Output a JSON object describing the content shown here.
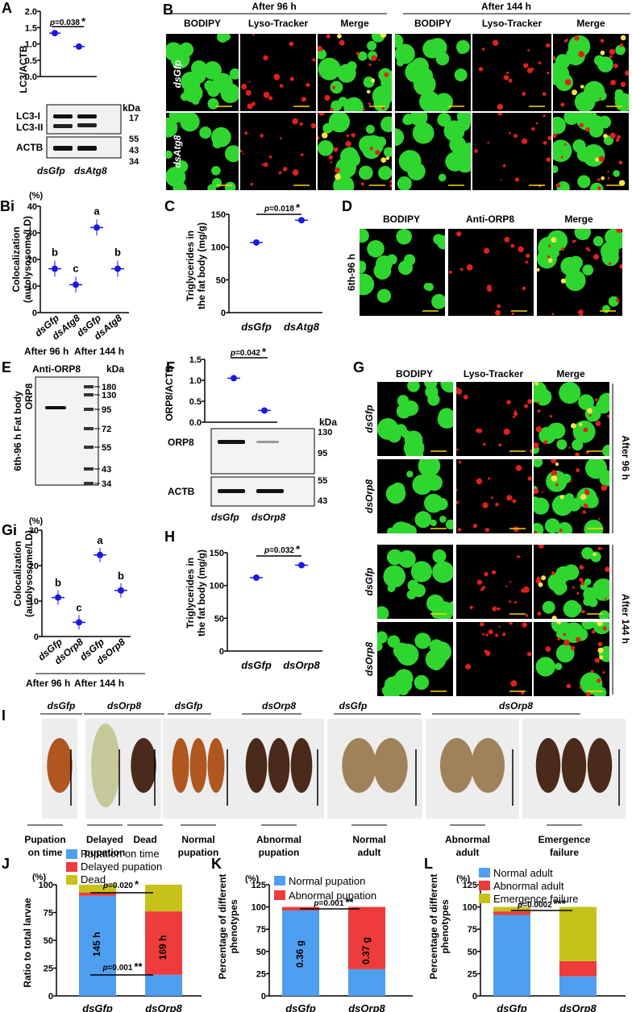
{
  "colors": {
    "green": "#2fd62f",
    "red": "#e0201a",
    "yellow": "#ffe34a",
    "blue": "#1a1adf",
    "bar_blue": "#4f9ff0",
    "bar_red": "#ee3b3b",
    "bar_olive": "#c7c21a",
    "pupa": "#b0561f",
    "scale": "#ffd400"
  },
  "panels": {
    "A": {
      "letter": "A",
      "ylabel": "LC3/ACTB",
      "p": "p=0.038",
      "star": "*",
      "yticks": [
        "0.0",
        "0.5",
        "1.0",
        "1.5",
        "2.0"
      ],
      "blot_labels": [
        "LC3-I",
        "LC3-II",
        "ACTB"
      ],
      "kda": "kDa",
      "markers": [
        "17",
        "55",
        "43",
        "34"
      ],
      "lanes": [
        "dsGfp",
        "dsAtg8"
      ],
      "chart_data": {
        "type": "scatter",
        "categories": [
          "dsGfp",
          "dsAtg8"
        ],
        "values": [
          1.33,
          0.92
        ],
        "ylim": [
          0,
          2.0
        ],
        "ylabel": "LC3/ACTB"
      }
    },
    "B": {
      "letter": "B",
      "group1": "After 96 h",
      "group2": "After 144 h",
      "cols": [
        "BODIPY",
        "Lyso-Tracker",
        "Merge",
        "BODIPY",
        "Lyso-Tracker",
        "Merge"
      ],
      "rows": [
        "dsGfp",
        "dsAtg8"
      ]
    },
    "Bi": {
      "letter": "Bi",
      "unit": "(%)",
      "ylabel1": "Colocalization",
      "ylabel2": "(autolysosome/LD)",
      "yticks": [
        "0",
        "10",
        "20",
        "30",
        "40"
      ],
      "cats": [
        "dsGfp",
        "dsAtg8",
        "dsGfp",
        "dsAtg8"
      ],
      "letters": [
        "b",
        "c",
        "a",
        "b"
      ],
      "groups": [
        "After 96 h",
        "After 144 h"
      ],
      "chart_data": {
        "type": "scatter",
        "categories": [
          "dsGfp",
          "dsAtg8",
          "dsGfp",
          "dsAtg8"
        ],
        "values": [
          16.5,
          10.5,
          32,
          16.5
        ],
        "ylim": [
          0,
          40
        ]
      }
    },
    "C": {
      "letter": "C",
      "ylabel1": "Triglycerides in",
      "ylabel2": "the fat body (mg/g)",
      "p": "p=0.018",
      "star": "*",
      "yticks": [
        "0",
        "50",
        "100",
        "150"
      ],
      "cats": [
        "dsGfp",
        "dsAtg8"
      ],
      "chart_data": {
        "type": "scatter",
        "categories": [
          "dsGfp",
          "dsAtg8"
        ],
        "values": [
          107,
          141
        ],
        "ylim": [
          0,
          150
        ]
      }
    },
    "D": {
      "letter": "D",
      "cols": [
        "BODIPY",
        "Anti-ORP8",
        "Merge"
      ],
      "row": "6th-96 h"
    },
    "E": {
      "letter": "E",
      "title": "Anti-ORP8",
      "kda": "kDa",
      "side1": "6th-96 h Fat body",
      "side2": "ORP8",
      "markers": [
        "180",
        "130",
        "95",
        "72",
        "55",
        "43",
        "34"
      ]
    },
    "F": {
      "letter": "F",
      "ylabel": "ORP8/ACTB",
      "p": "p=0.042",
      "star": "*",
      "yticks": [
        "0.0",
        "0.5",
        "1.0",
        "1.5"
      ],
      "kda": "kDa",
      "blot_labels": [
        "ORP8",
        "ACTB"
      ],
      "markers": [
        "130",
        "95",
        "55",
        "43"
      ],
      "lanes": [
        "dsGfp",
        "dsOrp8"
      ],
      "chart_data": {
        "type": "scatter",
        "categories": [
          "dsGfp",
          "dsOrp8"
        ],
        "values": [
          1.05,
          0.28
        ],
        "ylim": [
          0,
          1.5
        ]
      }
    },
    "G": {
      "letter": "G",
      "cols": [
        "BODIPY",
        "Lyso-Tracker",
        "Merge"
      ],
      "rows": [
        "dsGfp",
        "dsOrp8",
        "dsGfp",
        "dsOrp8"
      ],
      "side1": "After 96 h",
      "side2": "After 144 h"
    },
    "Gi": {
      "letter": "Gi",
      "unit": "(%)",
      "ylabel1": "Colocalization",
      "ylabel2": "(autolysosome/LD)",
      "yticks": [
        "0",
        "10",
        "20",
        "30"
      ],
      "cats": [
        "dsGfp",
        "dsOrp8",
        "dsGfp",
        "dsOrp8"
      ],
      "letters": [
        "b",
        "c",
        "a",
        "b"
      ],
      "groups": [
        "After 96 h",
        "After 144 h"
      ],
      "chart_data": {
        "type": "scatter",
        "categories": [
          "dsGfp",
          "dsOrp8",
          "dsGfp",
          "dsOrp8"
        ],
        "values": [
          11,
          4,
          23,
          13
        ],
        "ylim": [
          0,
          30
        ]
      }
    },
    "H": {
      "letter": "H",
      "ylabel1": "Triglycerides in",
      "ylabel2": "the fat body (mg/g)",
      "p": "p=0.032",
      "star": "*",
      "yticks": [
        "0",
        "50",
        "100",
        "150"
      ],
      "cats": [
        "dsGfp",
        "dsOrp8"
      ],
      "chart_data": {
        "type": "scatter",
        "categories": [
          "dsGfp",
          "dsOrp8"
        ],
        "values": [
          112,
          131
        ],
        "ylim": [
          0,
          150
        ]
      }
    },
    "I": {
      "letter": "I",
      "headers": [
        "dsGfp",
        "dsOrp8",
        "dsGfp",
        "dsOrp8",
        "dsGfp",
        "dsOrp8"
      ],
      "captions": [
        "Pupation on time",
        "Delayed pupation",
        "Dead",
        "Normal pupation",
        "Abnormal pupation",
        "Normal adult",
        "Abnormal adult",
        "Emergence failure"
      ]
    },
    "J": {
      "letter": "J",
      "unit": "(%)",
      "ylabel": "Ratio to total larvae",
      "legend": [
        "Pupation on time",
        "Delayed pupation",
        "Dead"
      ],
      "p1": "p=0.020",
      "s1": "*",
      "p2": "p=0.001",
      "s2": "**",
      "label1": "145 h",
      "label2": "169 h",
      "yticks": [
        "0",
        "25",
        "50",
        "75",
        "100"
      ],
      "cats": [
        "dsGfp",
        "dsOrp8"
      ],
      "chart_data": {
        "type": "bar",
        "categories": [
          "dsGfp",
          "dsOrp8"
        ],
        "series": [
          {
            "name": "Pupation on time",
            "values": [
              90,
              19
            ]
          },
          {
            "name": "Delayed pupation",
            "values": [
              3,
              57
            ]
          },
          {
            "name": "Dead",
            "values": [
              7,
              24
            ]
          }
        ],
        "ylim": [
          0,
          100
        ]
      }
    },
    "K": {
      "letter": "K",
      "unit": "(%)",
      "ylabel1": "Percentage of different",
      "ylabel2": "phenotypes",
      "legend": [
        "Normal pupation",
        "Abnormal pupation"
      ],
      "p": "p=0.001",
      "star": "**",
      "label1": "0.36 g",
      "label2": "0.37 g",
      "yticks": [
        "0",
        "25",
        "50",
        "75",
        "100",
        "125"
      ],
      "cats": [
        "dsGfp",
        "dsOrp8"
      ],
      "chart_data": {
        "type": "bar",
        "categories": [
          "dsGfp",
          "dsOrp8"
        ],
        "series": [
          {
            "name": "Normal pupation",
            "values": [
              96,
              30
            ]
          },
          {
            "name": "Abnormal pupation",
            "values": [
              4,
              70
            ]
          }
        ],
        "ylim": [
          0,
          125
        ]
      }
    },
    "L": {
      "letter": "L",
      "unit": "(%)",
      "ylabel1": "Percentage of different",
      "ylabel2": "phenotypes",
      "legend": [
        "Normal adult",
        "Abnormal adult",
        "Emergence failure"
      ],
      "p": "p=0.0002",
      "star": "***",
      "yticks": [
        "0",
        "25",
        "50",
        "75",
        "100",
        "125"
      ],
      "cats": [
        "dsGfp",
        "dsOrp8"
      ],
      "chart_data": {
        "type": "bar",
        "categories": [
          "dsGfp",
          "dsOrp8"
        ],
        "series": [
          {
            "name": "Normal adult",
            "values": [
              91,
              22
            ]
          },
          {
            "name": "Abnormal adult",
            "values": [
              4,
              17
            ]
          },
          {
            "name": "Emergence failure",
            "values": [
              5,
              61
            ]
          }
        ],
        "ylim": [
          0,
          125
        ]
      }
    }
  }
}
